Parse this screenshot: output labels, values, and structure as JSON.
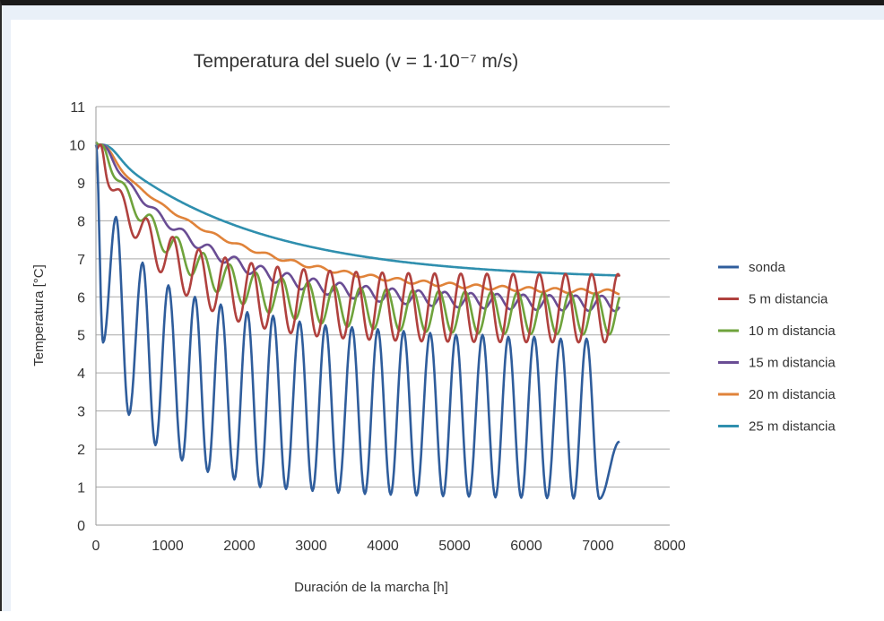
{
  "chart_data": {
    "type": "line",
    "title": "Temperatura del suelo (v = 1·10⁻⁷ m/s)",
    "xlabel": "Duración de la marcha [h]",
    "ylabel": "Temperatura [°C]",
    "xlim": [
      0,
      8000
    ],
    "ylim": [
      0,
      11
    ],
    "xticks": [
      "0",
      "1000",
      "2000",
      "3000",
      "4000",
      "5000",
      "6000",
      "7000",
      "8000"
    ],
    "yticks": [
      "0",
      "1",
      "2",
      "3",
      "4",
      "5",
      "6",
      "7",
      "8",
      "9",
      "10",
      "11"
    ],
    "grid": "horizontal",
    "legend_position": "right",
    "x_end": 7300,
    "series": [
      {
        "name": "sonda",
        "color": "#2f5d9c",
        "model": {
          "type": "sonda",
          "start": 10,
          "minima": [
            [
              100,
              4.8
            ],
            [
              460,
              2.9
            ],
            [
              830,
              2.1
            ],
            [
              1200,
              1.7
            ],
            [
              1560,
              1.4
            ],
            [
              1930,
              1.2
            ],
            [
              2290,
              1.0
            ],
            [
              2650,
              0.95
            ],
            [
              3020,
              0.9
            ],
            [
              3380,
              0.85
            ],
            [
              3750,
              0.82
            ],
            [
              4110,
              0.8
            ],
            [
              4470,
              0.78
            ],
            [
              4840,
              0.76
            ],
            [
              5200,
              0.75
            ],
            [
              5570,
              0.73
            ],
            [
              5930,
              0.72
            ],
            [
              6290,
              0.71
            ],
            [
              6660,
              0.7
            ],
            [
              7020,
              0.69
            ]
          ],
          "maxima": [
            [
              280,
              8.1
            ],
            [
              650,
              6.9
            ],
            [
              1010,
              6.3
            ],
            [
              1380,
              6.0
            ],
            [
              1740,
              5.8
            ],
            [
              2110,
              5.6
            ],
            [
              2470,
              5.5
            ],
            [
              2840,
              5.35
            ],
            [
              3200,
              5.25
            ],
            [
              3570,
              5.2
            ],
            [
              3930,
              5.15
            ],
            [
              4290,
              5.1
            ],
            [
              4660,
              5.05
            ],
            [
              5020,
              5.0
            ],
            [
              5390,
              5.0
            ],
            [
              5750,
              4.95
            ],
            [
              6110,
              4.95
            ],
            [
              6480,
              4.9
            ],
            [
              6840,
              4.9
            ]
          ],
          "end": [
            7300,
            2.2
          ]
        }
      },
      {
        "name": "5 m distancia",
        "color": "#b0413e",
        "model": {
          "type": "decay",
          "a": 5.0,
          "tau": 900,
          "base": 4.8,
          "amp": 0.9,
          "shift": 60,
          "sigma": 60
        }
      },
      {
        "name": "10 m distancia",
        "color": "#6fa33c",
        "model": {
          "type": "decay",
          "a": 5.2,
          "tau": 1100,
          "base": 5.0,
          "amp": 0.55,
          "shift": 120,
          "sigma": 90
        }
      },
      {
        "name": "15 m distancia",
        "color": "#6a4d94",
        "model": {
          "type": "decay",
          "a": 4.6,
          "tau": 1400,
          "base": 5.6,
          "amp": 0.2,
          "shift": 200,
          "sigma": 130
        }
      },
      {
        "name": "20 m distancia",
        "color": "#e0833a",
        "model": {
          "type": "decay",
          "a": 4.0,
          "tau": 1800,
          "base": 6.0,
          "amp": 0.06,
          "shift": 280,
          "sigma": 180
        }
      },
      {
        "name": "25 m distancia",
        "color": "#2f8fae",
        "model": {
          "type": "decay",
          "a": 3.6,
          "tau": 2100,
          "base": 6.45,
          "amp": 0.0,
          "shift": 350,
          "sigma": 240
        }
      }
    ]
  }
}
